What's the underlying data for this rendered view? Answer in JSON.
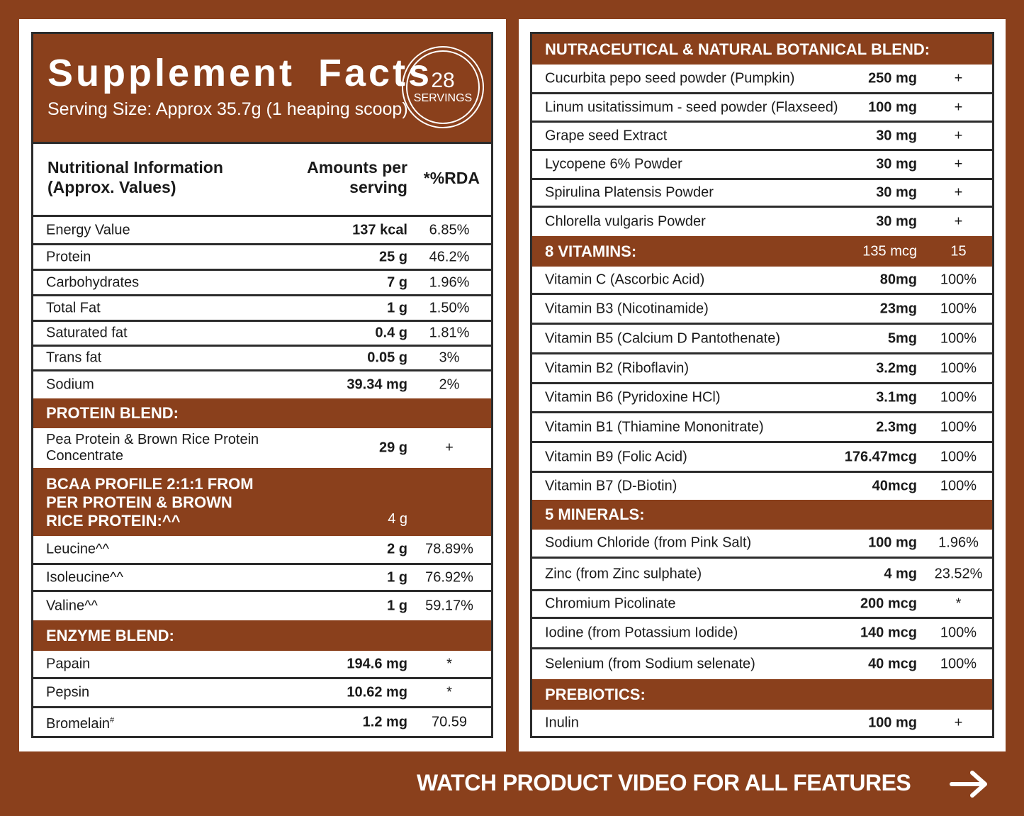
{
  "header": {
    "title": "Supplement Facts",
    "serving_size": "Serving Size: Approx 35.7g (1 heaping scoop)",
    "servings_count": "28",
    "servings_label": "SERVINGS"
  },
  "left_columns": {
    "name": [
      "Nutritional Information",
      "(Approx. Values)"
    ],
    "amount": [
      "Amounts per",
      "serving"
    ],
    "rda": "*%RDA"
  },
  "nutrition": [
    {
      "name": "Energy Value",
      "amount": "137 kcal",
      "rda": "6.85%"
    },
    {
      "name": "Protein",
      "amount": "25 g",
      "rda": "46.2%"
    },
    {
      "name": "Carbohydrates",
      "amount": "7 g",
      "rda": "1.96%"
    },
    {
      "name": "Total Fat",
      "amount": "1 g",
      "rda": "1.50%"
    },
    {
      "name": "Saturated fat",
      "amount": "0.4 g",
      "rda": "1.81%"
    },
    {
      "name": "Trans fat",
      "amount": "0.05 g",
      "rda": "3%"
    },
    {
      "name": "Sodium",
      "amount": "39.34 mg",
      "rda": "2%"
    }
  ],
  "protein_blend": {
    "title": "PROTEIN BLEND:",
    "items": [
      {
        "name": [
          "Pea Protein & Brown Rice Protein",
          "Concentrate"
        ],
        "amount": "29 g",
        "rda": "+"
      }
    ]
  },
  "bcaa": {
    "title": [
      "BCAA PROFILE 2:1:1 FROM",
      "PER PROTEIN & BROWN",
      "RICE PROTEIN:^^"
    ],
    "amount": "4 g",
    "items": [
      {
        "name": "Leucine^^",
        "amount": "2 g",
        "rda": "78.89%"
      },
      {
        "name": "Isoleucine^^",
        "amount": "1 g",
        "rda": "76.92%"
      },
      {
        "name": "Valine^^",
        "amount": "1 g",
        "rda": "59.17%"
      }
    ]
  },
  "enzyme_blend": {
    "title": "ENZYME BLEND:",
    "items": [
      {
        "name": "Papain",
        "sup": "",
        "amount": "194.6 mg",
        "rda": "*"
      },
      {
        "name": "Pepsin",
        "sup": "",
        "amount": "10.62 mg",
        "rda": "*"
      },
      {
        "name": "Bromelain",
        "sup": "#",
        "amount": "1.2 mg",
        "rda": "70.59"
      }
    ]
  },
  "botanical": {
    "title": "NUTRACEUTICAL & NATURAL BOTANICAL BLEND:",
    "items": [
      {
        "name": "Cucurbita pepo seed powder (Pumpkin)",
        "amount": "250 mg",
        "rda": "+"
      },
      {
        "name": "Linum usitatissimum - seed powder (Flaxseed)",
        "amount": "100 mg",
        "rda": "+"
      },
      {
        "name": "Grape seed Extract",
        "amount": "30 mg",
        "rda": "+"
      },
      {
        "name": "Lycopene 6% Powder",
        "amount": "30 mg",
        "rda": "+"
      },
      {
        "name": "Spirulina Platensis Powder",
        "amount": "30 mg",
        "rda": "+"
      },
      {
        "name": "Chlorella vulgaris Powder",
        "amount": "30 mg",
        "rda": "+"
      }
    ]
  },
  "vitamins": {
    "title": "8 VITAMINS:",
    "amount": "135 mcg",
    "rda": "15",
    "items": [
      {
        "name": "Vitamin C (Ascorbic Acid)",
        "amount": "80mg",
        "rda": "100%"
      },
      {
        "name": "Vitamin B3 (Nicotinamide)",
        "amount": "23mg",
        "rda": "100%"
      },
      {
        "name": "Vitamin B5 (Calcium D Pantothenate)",
        "amount": "5mg",
        "rda": "100%"
      },
      {
        "name": "Vitamin B2 (Riboflavin)",
        "amount": "3.2mg",
        "rda": "100%"
      },
      {
        "name": "Vitamin B6 (Pyridoxine HCl)",
        "amount": "3.1mg",
        "rda": "100%"
      },
      {
        "name": "Vitamin B1 (Thiamine Mononitrate)",
        "amount": "2.3mg",
        "rda": "100%"
      },
      {
        "name": "Vitamin B9 (Folic Acid)",
        "amount": "176.47mcg",
        "rda": "100%"
      },
      {
        "name": "Vitamin B7 (D-Biotin)",
        "amount": "40mcg",
        "rda": "100%"
      }
    ]
  },
  "minerals": {
    "title": "5 MINERALS:",
    "items": [
      {
        "name": "Sodium Chloride (from Pink Salt)",
        "amount": "100 mg",
        "rda": "1.96%"
      },
      {
        "name": "Zinc (from Zinc sulphate)",
        "amount": "4 mg",
        "rda": "23.52%"
      },
      {
        "name": "Chromium Picolinate",
        "amount": "200 mcg",
        "rda": "*"
      },
      {
        "name": "Iodine (from Potassium Iodide)",
        "amount": "140 mcg",
        "rda": "100%"
      },
      {
        "name": "Selenium (from Sodium selenate)",
        "amount": "40 mcg",
        "rda": "100%"
      }
    ]
  },
  "prebiotics": {
    "title": "PREBIOTICS:",
    "items": [
      {
        "name": "Inulin",
        "amount": "100 mg",
        "rda": "+"
      }
    ]
  },
  "cta": {
    "label": "WATCH PRODUCT VIDEO FOR ALL FEATURES",
    "icon": "arrow-right-icon"
  },
  "colors": {
    "brand": "#8a401c",
    "border": "#2c2c2c",
    "text": "#1a1a1a"
  }
}
